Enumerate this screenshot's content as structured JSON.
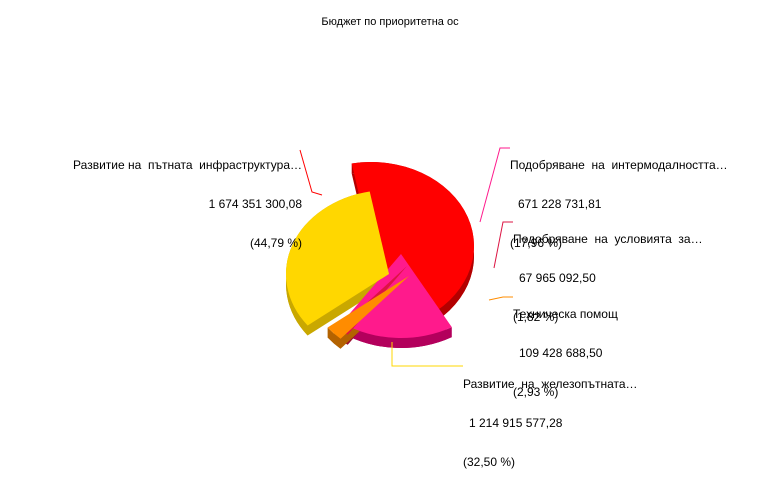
{
  "chart_data": {
    "type": "pie",
    "title": "Бюджет по приоритетна ос",
    "style": "3d-exploded",
    "slices": [
      {
        "name": "Развитие на  пътната  инфраструктура…",
        "value": "1 674 351 300,08",
        "numeric": 1674351300.08,
        "percent": "(44,79 %)",
        "pct": 44.79,
        "color": "#ff0000",
        "dark": "#b30000"
      },
      {
        "name": "Подобряване  на  интермодалността…",
        "value": "671 228 731,81",
        "numeric": 671228731.81,
        "percent": "(17,96 %)",
        "pct": 17.96,
        "color": "#ff1a8c",
        "dark": "#b3005c"
      },
      {
        "name": "Подобряване  на  условията  за…",
        "value": "67 965 092,50",
        "numeric": 67965092.5,
        "percent": "(1,82 %)",
        "pct": 1.82,
        "color": "#dc1443",
        "dark": "#9a0d2f"
      },
      {
        "name": "Техническа помощ",
        "value": "109 428 688,50",
        "numeric": 109428688.5,
        "percent": "(2,93 %)",
        "pct": 2.93,
        "color": "#ff8c00",
        "dark": "#b36200"
      },
      {
        "name": "Развитие  на  железопътната…",
        "value": "1 214 915 577,28",
        "numeric": 1214915577.28,
        "percent": "(32,50 %)",
        "pct": 32.5,
        "color": "#ffd700",
        "dark": "#c9a800"
      }
    ]
  }
}
